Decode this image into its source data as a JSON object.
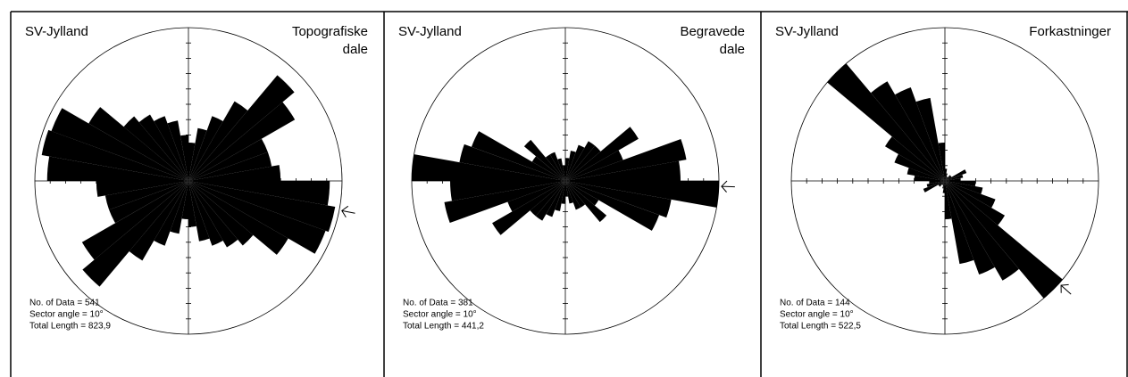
{
  "chart_data": [
    {
      "type": "rose",
      "region": "SV-Jylland",
      "title_lines": [
        "Topografiske",
        "dale"
      ],
      "stats": [
        "No. of Data = 541",
        "Sector angle = 10°",
        "Total Length = 823,9"
      ],
      "values": [
        25,
        35,
        45,
        60,
        90,
        80,
        55,
        55,
        60,
        92,
        97,
        95,
        75,
        55,
        50,
        45,
        40,
        30
      ],
      "rlim": [
        0,
        100
      ],
      "color": "#000000",
      "mean_direction": 101
    },
    {
      "type": "rose",
      "region": "SV-Jylland",
      "title_lines": [
        "Begravede",
        "dale"
      ],
      "stats": [
        "No. of Data = 381",
        "Sector angle = 10°",
        "Total Length = 441,2"
      ],
      "values": [
        15,
        20,
        25,
        30,
        30,
        55,
        40,
        80,
        75,
        100,
        70,
        65,
        25,
        35,
        20,
        20,
        15,
        10
      ],
      "rlim": [
        0,
        100
      ],
      "color": "#000000",
      "mean_direction": 92
    },
    {
      "type": "rose",
      "region": "SV-Jylland",
      "title_lines": [
        "Forkastninger"
      ],
      "stats": [
        "No. of Data = 144",
        "Sector angle = 10°",
        "Total Length = 522,5"
      ],
      "values": [
        8,
        5,
        3,
        3,
        5,
        5,
        15,
        12,
        10,
        20,
        25,
        35,
        45,
        100,
        75,
        65,
        55,
        25
      ],
      "rlim": [
        0,
        100
      ],
      "color": "#000000",
      "mean_direction": 132
    }
  ]
}
